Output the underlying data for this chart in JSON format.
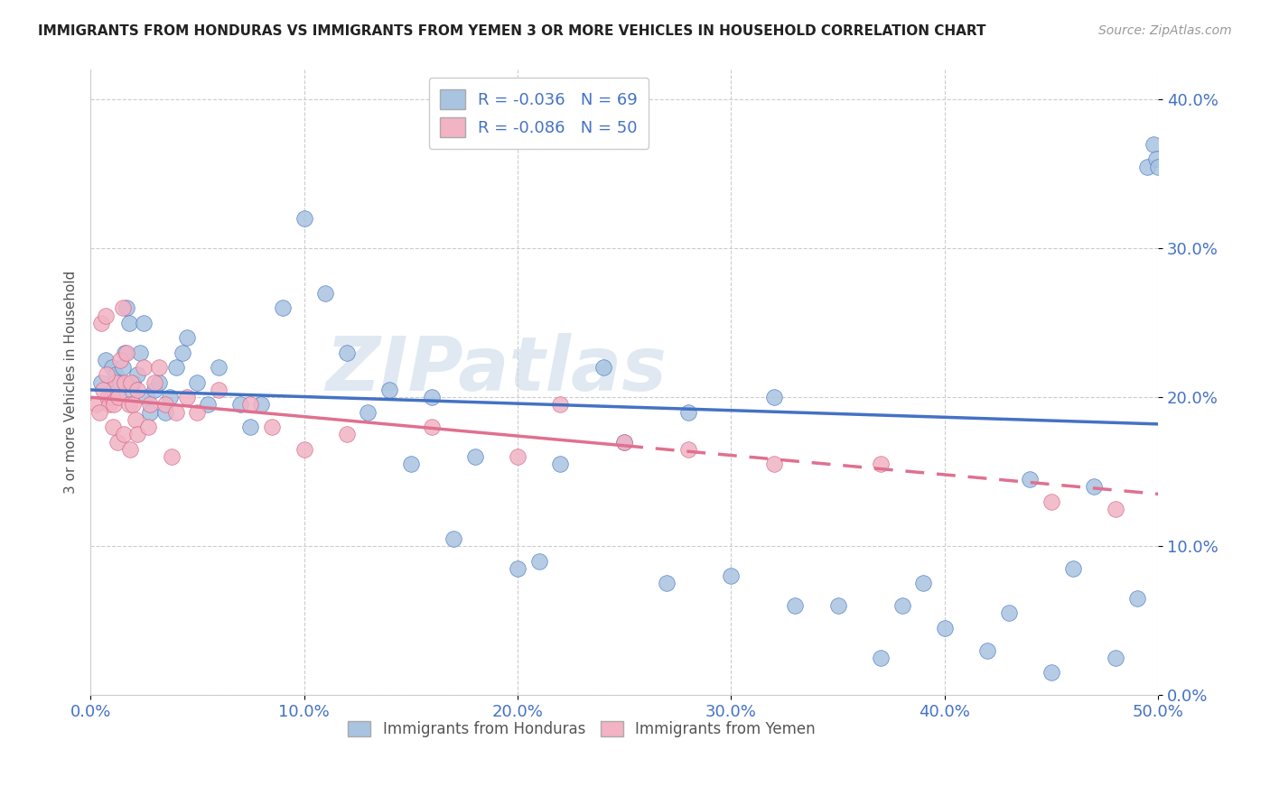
{
  "title": "IMMIGRANTS FROM HONDURAS VS IMMIGRANTS FROM YEMEN 3 OR MORE VEHICLES IN HOUSEHOLD CORRELATION CHART",
  "source": "Source: ZipAtlas.com",
  "ylabel": "3 or more Vehicles in Household",
  "xlim": [
    0.0,
    50.0
  ],
  "ylim": [
    0.0,
    42.0
  ],
  "legend_honduras": "R = -0.036   N = 69",
  "legend_yemen": "R = -0.086   N = 50",
  "legend_label_honduras": "Immigrants from Honduras",
  "legend_label_yemen": "Immigrants from Yemen",
  "color_honduras": "#a8c4e0",
  "color_yemen": "#f2b3c4",
  "trendline_honduras_color": "#4472c4",
  "trendline_yemen_color": "#e07090",
  "watermark": "ZIPatlas",
  "honduras_x": [
    0.5,
    0.7,
    0.9,
    1.0,
    1.1,
    1.2,
    1.3,
    1.4,
    1.5,
    1.6,
    1.7,
    1.8,
    1.9,
    2.0,
    2.2,
    2.3,
    2.5,
    2.6,
    2.8,
    3.0,
    3.2,
    3.5,
    3.7,
    4.0,
    4.3,
    4.5,
    5.0,
    5.5,
    6.0,
    7.0,
    7.5,
    8.0,
    9.0,
    10.0,
    11.0,
    12.0,
    13.0,
    14.0,
    15.0,
    16.0,
    17.0,
    18.0,
    20.0,
    21.0,
    22.0,
    24.0,
    25.0,
    27.0,
    28.0,
    30.0,
    32.0,
    33.0,
    35.0,
    37.0,
    38.0,
    39.0,
    40.0,
    42.0,
    43.0,
    44.0,
    45.0,
    46.0,
    47.0,
    48.0,
    49.0,
    49.5,
    49.8,
    49.9,
    50.0
  ],
  "honduras_y": [
    21.0,
    22.5,
    20.0,
    22.0,
    20.5,
    21.5,
    20.5,
    21.0,
    22.0,
    23.0,
    26.0,
    25.0,
    20.5,
    21.0,
    21.5,
    23.0,
    25.0,
    20.0,
    19.0,
    20.5,
    21.0,
    19.0,
    20.0,
    22.0,
    23.0,
    24.0,
    21.0,
    19.5,
    22.0,
    19.5,
    18.0,
    19.5,
    26.0,
    32.0,
    27.0,
    23.0,
    19.0,
    20.5,
    15.5,
    20.0,
    10.5,
    16.0,
    8.5,
    9.0,
    15.5,
    22.0,
    17.0,
    7.5,
    19.0,
    8.0,
    20.0,
    6.0,
    6.0,
    2.5,
    6.0,
    7.5,
    4.5,
    3.0,
    5.5,
    14.5,
    1.5,
    8.5,
    14.0,
    2.5,
    6.5,
    35.5,
    37.0,
    36.0,
    35.5
  ],
  "yemen_x": [
    0.3,
    0.5,
    0.7,
    0.8,
    0.9,
    1.0,
    1.1,
    1.2,
    1.3,
    1.4,
    1.5,
    1.6,
    1.7,
    1.8,
    1.9,
    2.0,
    2.1,
    2.2,
    2.5,
    2.8,
    3.0,
    3.2,
    3.5,
    4.0,
    4.5,
    5.0,
    6.0,
    7.5,
    8.5,
    10.0,
    12.0,
    16.0,
    20.0,
    22.0,
    25.0,
    28.0,
    32.0,
    37.0,
    45.0,
    48.0,
    0.4,
    0.6,
    0.75,
    1.05,
    1.25,
    1.55,
    1.85,
    2.2,
    2.7,
    3.8
  ],
  "yemen_y": [
    19.5,
    25.0,
    25.5,
    20.0,
    19.5,
    20.0,
    19.5,
    21.0,
    20.0,
    22.5,
    26.0,
    21.0,
    23.0,
    19.5,
    21.0,
    19.5,
    18.5,
    20.5,
    22.0,
    19.5,
    21.0,
    22.0,
    19.5,
    19.0,
    20.0,
    19.0,
    20.5,
    19.5,
    18.0,
    16.5,
    17.5,
    18.0,
    16.0,
    19.5,
    17.0,
    16.5,
    15.5,
    15.5,
    13.0,
    12.5,
    19.0,
    20.5,
    21.5,
    18.0,
    17.0,
    17.5,
    16.5,
    17.5,
    18.0,
    16.0
  ],
  "trendline_h_x0": 0,
  "trendline_h_y0": 20.5,
  "trendline_h_x1": 50,
  "trendline_h_y1": 18.2,
  "trendline_y_x0": 0,
  "trendline_y_y0": 20.0,
  "trendline_y_x1": 50,
  "trendline_y_y1": 13.5,
  "trendline_y_solid_end": 25,
  "xtick_vals": [
    0,
    10,
    20,
    30,
    40,
    50
  ],
  "ytick_vals": [
    0,
    10,
    20,
    30,
    40
  ]
}
